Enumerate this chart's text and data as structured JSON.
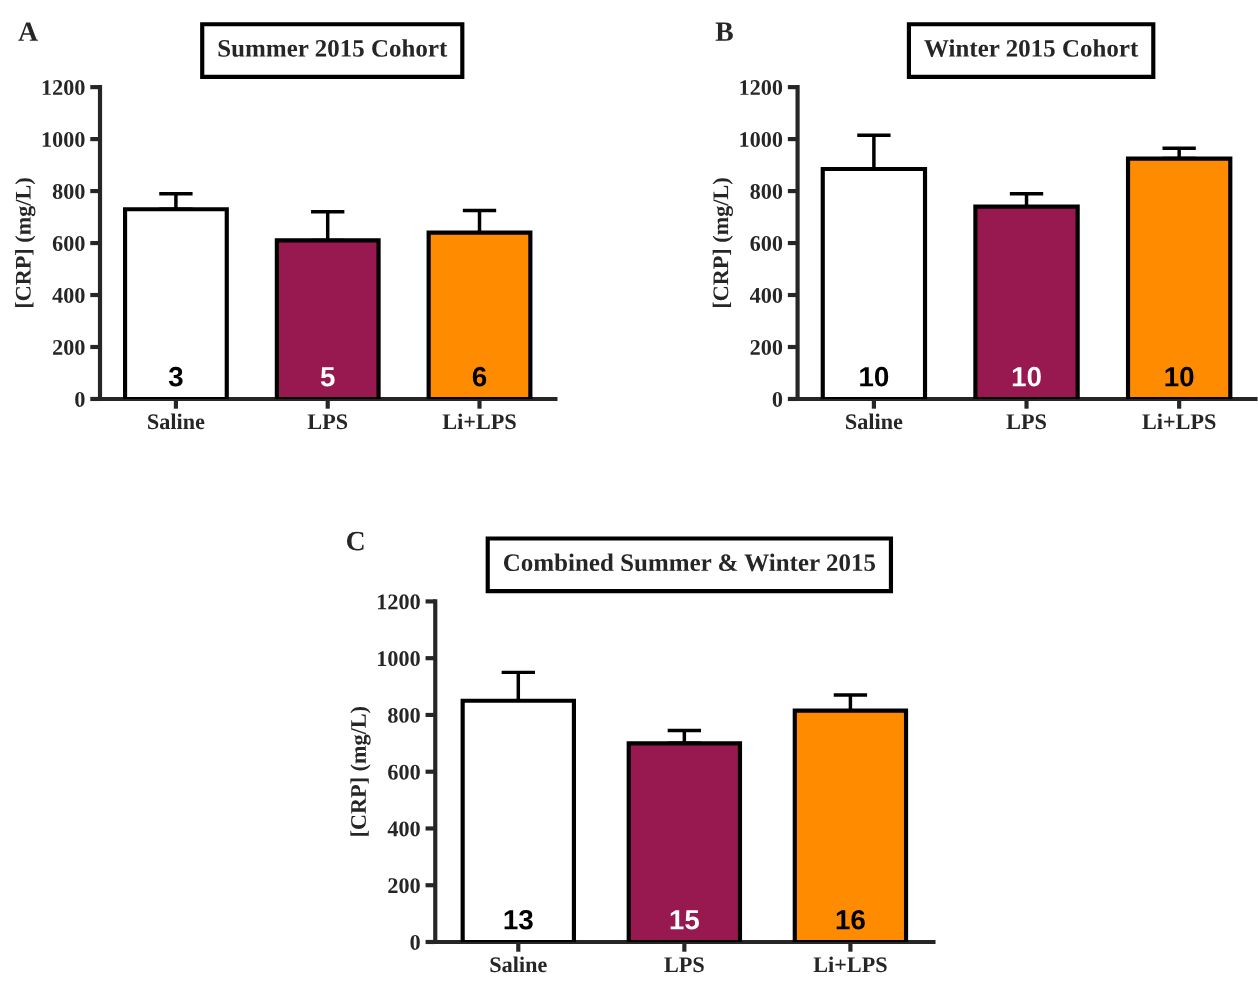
{
  "chart_data": [
    {
      "type": "bar",
      "title": "Summer 2015 Cohort",
      "ylabel": "[CRP] (mg/L)",
      "categories": [
        "Saline",
        "LPS",
        "Li+LPS"
      ],
      "values": [
        730,
        610,
        640
      ],
      "colors": [
        "#ffffff",
        "#97194f",
        "#ff8c00"
      ],
      "errors": [
        [
          730,
          790
        ],
        [
          610,
          720
        ],
        [
          640,
          725
        ]
      ],
      "ylim": [
        0,
        1200
      ],
      "yticks": [
        0,
        200,
        400,
        600,
        800,
        1000,
        1200
      ],
      "annotations": [
        "A",
        {
          "text": "3",
          "x": "Saline",
          "y": 0
        },
        {
          "text": "5",
          "x": "LPS",
          "y": 0
        },
        {
          "text": "6",
          "x": "Li+LPS",
          "y": 0
        }
      ]
    },
    {
      "type": "bar",
      "title": "Winter 2015 Cohort",
      "ylabel": "[CRP] (mg/L)",
      "categories": [
        "Saline",
        "LPS",
        "Li+LPS"
      ],
      "values": [
        885,
        740,
        925
      ],
      "colors": [
        "#ffffff",
        "#97194f",
        "#ff8c00"
      ],
      "errors": [
        [
          885,
          1015
        ],
        [
          740,
          790
        ],
        [
          925,
          965
        ]
      ],
      "ylim": [
        0,
        1200
      ],
      "yticks": [
        0,
        200,
        400,
        600,
        800,
        1000,
        1200
      ],
      "annotations": [
        "B",
        {
          "text": "10",
          "x": "Saline",
          "y": 0
        },
        {
          "text": "10",
          "x": "LPS",
          "y": 0
        },
        {
          "text": "10",
          "x": "Li+LPS",
          "y": 0
        }
      ]
    },
    {
      "type": "bar",
      "title": "Combined Summer & Winter 2015",
      "ylabel": "[CRP] (mg/L)",
      "categories": [
        "Saline",
        "LPS",
        "Li+LPS"
      ],
      "values": [
        850,
        700,
        815
      ],
      "colors": [
        "#ffffff",
        "#97194f",
        "#ff8c00"
      ],
      "errors": [
        [
          850,
          950
        ],
        [
          700,
          745
        ],
        [
          815,
          870
        ]
      ],
      "ylim": [
        0,
        1200
      ],
      "yticks": [
        0,
        200,
        400,
        600,
        800,
        1000,
        1200
      ],
      "annotations": [
        "C",
        {
          "text": "13",
          "x": "Saline",
          "y": 0
        },
        {
          "text": "15",
          "x": "LPS",
          "y": 0
        },
        {
          "text": "16",
          "x": "Li+LPS",
          "y": 0
        }
      ]
    }
  ]
}
